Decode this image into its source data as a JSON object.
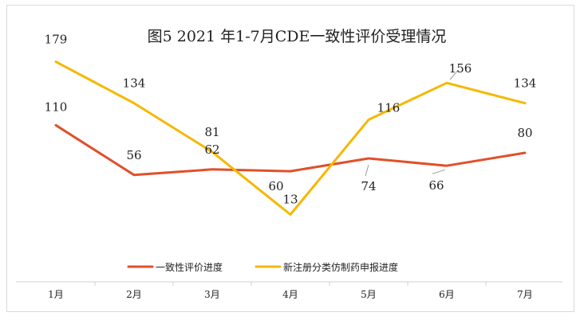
{
  "chart_data": {
    "type": "line",
    "title": "图5  2021 年1-7月CDE一致性评价受理情况",
    "categories": [
      "1月",
      "2月",
      "3月",
      "4月",
      "5月",
      "6月",
      "7月"
    ],
    "series": [
      {
        "name": "一致性评价进度",
        "color": "#e0502a",
        "values": [
          110,
          56,
          62,
          60,
          74,
          66,
          80
        ]
      },
      {
        "name": "新注册分类仿制药申报进度",
        "color": "#f5b800",
        "values": [
          179,
          134,
          81,
          13,
          116,
          156,
          134
        ]
      }
    ],
    "xlabel": "",
    "ylabel": "",
    "grid": false,
    "legend": "bottom"
  }
}
